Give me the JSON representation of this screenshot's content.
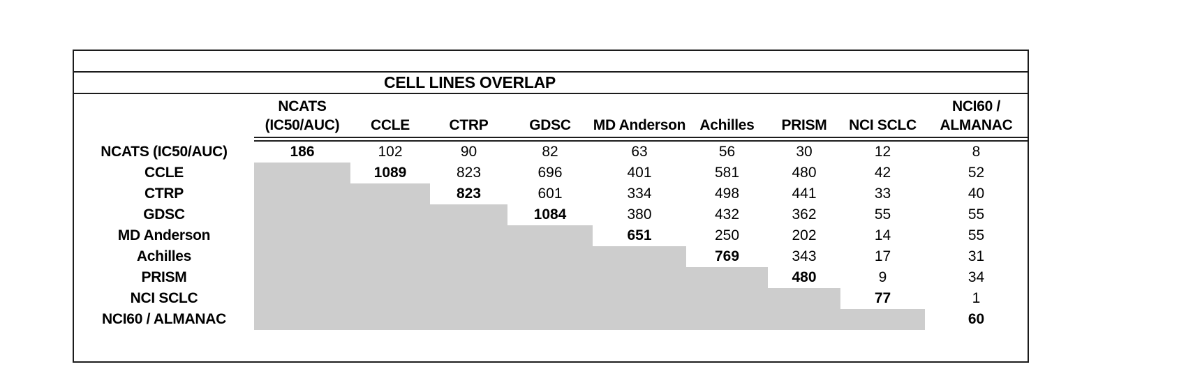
{
  "colors": {
    "lower_triangle_shade": "#cdcdcd",
    "border": "#1c1c1c",
    "text": "#000000",
    "background": "#ffffff"
  },
  "chart_data": {
    "type": "table",
    "title": "CELL LINES OVERLAP",
    "columns": [
      "NCATS (IC50/AUC)",
      "CCLE",
      "CTRP",
      "GDSC",
      "MD Anderson",
      "Achilles",
      "PRISM",
      "NCI SCLC",
      "NCI60 / ALMANAC"
    ],
    "column_header_lines": [
      [
        "NCATS",
        "(IC50/AUC)"
      ],
      [
        "CCLE"
      ],
      [
        "CTRP"
      ],
      [
        "GDSC"
      ],
      [
        "MD Anderson"
      ],
      [
        "Achilles"
      ],
      [
        "PRISM"
      ],
      [
        "NCI SCLC"
      ],
      [
        "NCI60 /",
        "ALMANAC"
      ]
    ],
    "rows": [
      "NCATS (IC50/AUC)",
      "CCLE",
      "CTRP",
      "GDSC",
      "MD Anderson",
      "Achilles",
      "PRISM",
      "NCI SCLC",
      "NCI60 / ALMANAC"
    ],
    "matrix": [
      [
        186,
        102,
        90,
        82,
        63,
        56,
        30,
        12,
        8
      ],
      [
        null,
        1089,
        823,
        696,
        401,
        581,
        480,
        42,
        52
      ],
      [
        null,
        null,
        823,
        601,
        334,
        498,
        441,
        33,
        40
      ],
      [
        null,
        null,
        null,
        1084,
        380,
        432,
        362,
        55,
        55
      ],
      [
        null,
        null,
        null,
        null,
        651,
        250,
        202,
        14,
        55
      ],
      [
        null,
        null,
        null,
        null,
        null,
        769,
        343,
        17,
        31
      ],
      [
        null,
        null,
        null,
        null,
        null,
        null,
        480,
        9,
        34
      ],
      [
        null,
        null,
        null,
        null,
        null,
        null,
        null,
        77,
        1
      ],
      [
        null,
        null,
        null,
        null,
        null,
        null,
        null,
        null,
        60
      ]
    ],
    "diagonal_bold": true,
    "lower_triangle_shaded": true,
    "legend_position": "none",
    "grid": "outer-border-only"
  }
}
